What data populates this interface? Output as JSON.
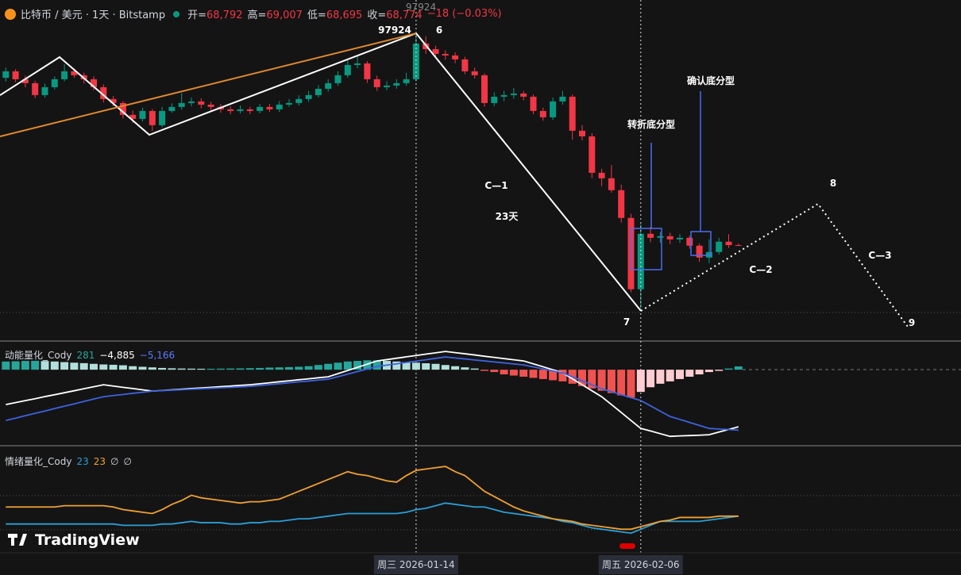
{
  "header": {
    "symbol": "比特币 / 美元 · 1天 · Bitstamp",
    "fields": [
      {
        "key": "开=",
        "value": "68,792"
      },
      {
        "key": "高=",
        "value": "69,007"
      },
      {
        "key": "低=",
        "value": "68,695"
      },
      {
        "key": "收=",
        "value": "68,774"
      }
    ],
    "change": "−18 (−0.03%)"
  },
  "brand": "TradingView",
  "chart_data": [
    {
      "type": "candlestick",
      "categories": [
        null,
        null,
        null,
        null,
        null,
        null,
        null,
        null,
        null,
        null,
        null,
        null,
        null,
        null,
        null,
        null,
        null,
        null,
        null,
        null,
        null,
        null,
        null,
        null,
        null,
        null,
        null,
        null,
        null,
        null,
        null,
        null,
        null,
        null,
        null,
        null,
        null,
        null,
        null,
        null,
        null,
        null,
        "周三 2026-01-14",
        null,
        null,
        null,
        null,
        null,
        null,
        null,
        null,
        null,
        null,
        null,
        null,
        null,
        null,
        null,
        null,
        null,
        null,
        null,
        null,
        null,
        null,
        "周五 2026-02-06",
        null,
        null,
        null,
        null,
        null,
        null,
        null,
        null,
        null,
        null
      ],
      "open": [
        91800,
        92690,
        91600,
        91060,
        89420,
        90510,
        91600,
        92690,
        92150,
        91600,
        90510,
        88880,
        88330,
        86700,
        86150,
        87240,
        85280,
        87240,
        87790,
        88330,
        88550,
        88110,
        87790,
        87460,
        87240,
        87460,
        87240,
        87790,
        87460,
        88110,
        88330,
        88880,
        89420,
        90290,
        91060,
        92150,
        93560,
        93780,
        91600,
        90510,
        90730,
        91060,
        91600,
        96510,
        95740,
        95090,
        94870,
        94330,
        92690,
        92150,
        88330,
        89200,
        89420,
        89640,
        89200,
        87240,
        86370,
        88550,
        89200,
        84520,
        83750,
        78740,
        77980,
        76340,
        72530,
        62720,
        70350,
        69800,
        70020,
        69580,
        69800,
        68710,
        67080,
        67840,
        69260,
        68792
      ],
      "high": [
        93200,
        93000,
        92100,
        91400,
        91000,
        92000,
        93700,
        93100,
        92500,
        92000,
        90900,
        89300,
        88600,
        87300,
        87700,
        87500,
        87800,
        88300,
        89700,
        89100,
        89000,
        88500,
        88200,
        87900,
        88000,
        87800,
        88200,
        88200,
        88600,
        88900,
        89400,
        90000,
        90800,
        91600,
        92700,
        94200,
        94800,
        94100,
        92100,
        91300,
        91600,
        92500,
        97924,
        97500,
        96200,
        95600,
        95300,
        94700,
        93200,
        92400,
        89800,
        90000,
        90400,
        90000,
        89500,
        87700,
        89100,
        90000,
        89500,
        85300,
        84200,
        79300,
        79800,
        77100,
        73100,
        71700,
        71300,
        70600,
        70500,
        70300,
        70100,
        69000,
        69600,
        69800,
        70300,
        69007
      ],
      "low": [
        91300,
        91200,
        90500,
        89000,
        89100,
        90200,
        91300,
        91800,
        91000,
        90100,
        88400,
        87900,
        86200,
        85600,
        85800,
        84500,
        85000,
        87000,
        87400,
        87900,
        87600,
        87300,
        87000,
        86800,
        86900,
        86800,
        86900,
        87100,
        87100,
        87800,
        88000,
        88500,
        89100,
        89900,
        90700,
        91800,
        93100,
        91100,
        90000,
        90100,
        90300,
        90700,
        91300,
        95100,
        94600,
        94300,
        93800,
        92300,
        91700,
        87800,
        87900,
        88600,
        88900,
        88700,
        86800,
        85900,
        86000,
        88100,
        83300,
        83200,
        78000,
        76900,
        76000,
        71900,
        62300,
        60000,
        69200,
        69100,
        68900,
        69100,
        68300,
        66500,
        66300,
        67500,
        68400,
        68695
      ],
      "close": [
        92690,
        91600,
        91060,
        89420,
        90510,
        91600,
        92690,
        92150,
        91600,
        90510,
        88880,
        88330,
        86700,
        86150,
        87240,
        85280,
        87240,
        87790,
        88330,
        88550,
        88110,
        87790,
        87460,
        87240,
        87460,
        87240,
        87790,
        87460,
        88110,
        88330,
        88880,
        89420,
        90290,
        91060,
        92150,
        93560,
        93780,
        91600,
        90510,
        90730,
        91060,
        91600,
        96510,
        95740,
        95090,
        94870,
        94330,
        92690,
        92150,
        88330,
        89200,
        89420,
        89640,
        89200,
        87240,
        86370,
        88550,
        89200,
        84520,
        83750,
        78740,
        77980,
        76340,
        72530,
        62720,
        70350,
        69800,
        70020,
        69580,
        69800,
        68710,
        67080,
        67840,
        69260,
        68790,
        68774
      ],
      "ylim": [
        55600,
        102500
      ],
      "colors": {
        "up": "#089981",
        "down": "#f23645"
      },
      "annotations": [
        "6",
        "C—1",
        "23天",
        "转折底分型",
        "确认底分型",
        "8",
        "C—3",
        "C—2",
        "7",
        "9"
      ]
    },
    {
      "type": "macd",
      "title": "动能量化_Cody",
      "histogram": {
        "values": [
          700,
          720,
          750,
          760,
          740,
          700,
          650,
          600,
          560,
          500,
          450,
          420,
          380,
          300,
          250,
          200,
          150,
          120,
          100,
          90,
          80,
          80,
          90,
          100,
          110,
          130,
          150,
          180,
          200,
          220,
          250,
          300,
          400,
          500,
          600,
          700,
          750,
          800,
          800,
          750,
          700,
          650,
          600,
          550,
          500,
          400,
          300,
          200,
          100,
          -100,
          -200,
          -400,
          -500,
          -600,
          -700,
          -800,
          -900,
          -1000,
          -1200,
          -1400,
          -1600,
          -1800,
          -2000,
          -2200,
          -2380,
          -1900,
          -1500,
          -1200,
          -1000,
          -800,
          -600,
          -400,
          -200,
          -100,
          100,
          281
        ],
        "colors": {
          "up": "#26a69a",
          "up_fading": "#b2dfdb",
          "down": "#ef5350",
          "down_fading": "#ffcdd2"
        }
      },
      "series": [
        {
          "color": "#ffffff",
          "label": "−4,885",
          "values": [
            -2980,
            -2810,
            -2640,
            -2480,
            -2300,
            -2140,
            -1970,
            -1800,
            -1630,
            -1460,
            -1290,
            -1400,
            -1510,
            -1610,
            -1720,
            -1830,
            -1780,
            -1720,
            -1670,
            -1610,
            -1560,
            -1510,
            -1450,
            -1400,
            -1340,
            -1290,
            -1200,
            -1120,
            -1030,
            -950,
            -860,
            -780,
            -690,
            -610,
            -340,
            -70,
            200,
            470,
            750,
            860,
            980,
            1100,
            1210,
            1330,
            1440,
            1560,
            1460,
            1360,
            1260,
            1150,
            1050,
            950,
            850,
            750,
            500,
            250,
            -10,
            -270,
            -780,
            -1290,
            -1800,
            -2310,
            -2980,
            -3660,
            -4340,
            -5020,
            -5240,
            -5470,
            -5700,
            -5660,
            -5630,
            -5600,
            -5560,
            -5330,
            -5110,
            -4885
          ]
        },
        {
          "color": "#3d63e0",
          "label": "−5,166",
          "values": [
            -4340,
            -4140,
            -3930,
            -3730,
            -3530,
            -3320,
            -3120,
            -2920,
            -2710,
            -2510,
            -2310,
            -2210,
            -2120,
            -2020,
            -1930,
            -1830,
            -1790,
            -1750,
            -1710,
            -1670,
            -1630,
            -1590,
            -1550,
            -1510,
            -1470,
            -1420,
            -1350,
            -1270,
            -1200,
            -1120,
            -1040,
            -970,
            -890,
            -810,
            -600,
            -380,
            -160,
            60,
            270,
            390,
            500,
            620,
            730,
            850,
            970,
            1090,
            1000,
            920,
            830,
            750,
            660,
            580,
            490,
            410,
            240,
            70,
            -100,
            -270,
            -610,
            -950,
            -1290,
            -1630,
            -1880,
            -2140,
            -2390,
            -2640,
            -3090,
            -3550,
            -4000,
            -4250,
            -4510,
            -4760,
            -5020,
            -5070,
            -5120,
            -5166
          ]
        }
      ],
      "ylim": [
        -6500,
        2450
      ]
    },
    {
      "type": "line",
      "title": "情绪量化_Cody",
      "series": [
        {
          "color": "#2a9fd8",
          "values": [
            17,
            17,
            17,
            17,
            17,
            17,
            17,
            17,
            17,
            17,
            17,
            17,
            16,
            16,
            16,
            16,
            17,
            17,
            18,
            19,
            18,
            18,
            18,
            17,
            17,
            18,
            18,
            19,
            19,
            20,
            21,
            21,
            22,
            23,
            24,
            25,
            25,
            25,
            25,
            25,
            25,
            26,
            28,
            29,
            31,
            33,
            32,
            31,
            30,
            30,
            28,
            26,
            25,
            24,
            23,
            22,
            21,
            19,
            18,
            16,
            14,
            13,
            12,
            11,
            10,
            13,
            16,
            19,
            19,
            19,
            19,
            19,
            20,
            21,
            22,
            23
          ]
        },
        {
          "color": "#f0a030",
          "values": [
            30,
            30,
            30,
            30,
            30,
            30,
            31,
            31,
            31,
            31,
            31,
            30,
            28,
            27,
            26,
            25,
            28,
            32,
            35,
            39,
            37,
            36,
            35,
            34,
            33,
            34,
            34,
            35,
            36,
            39,
            42,
            45,
            48,
            51,
            54,
            57,
            55,
            54,
            52,
            50,
            49,
            54,
            58,
            59,
            60,
            61,
            57,
            54,
            48,
            42,
            38,
            34,
            30,
            27,
            25,
            23,
            21,
            20,
            19,
            17,
            16,
            15,
            14,
            13,
            13,
            15,
            17,
            19,
            20,
            22,
            22,
            22,
            22,
            23,
            23,
            23
          ]
        }
      ],
      "extras": [
        "∅",
        "∅"
      ],
      "ylim": [
        -5,
        75
      ]
    }
  ]
}
